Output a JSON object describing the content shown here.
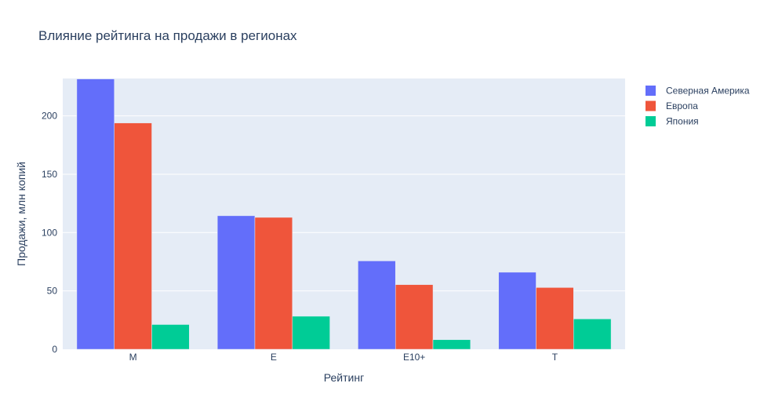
{
  "chart_data": {
    "type": "bar",
    "title": "Влияние рейтинга на продажи в регионах",
    "xlabel": "Рейтинг",
    "ylabel": "Продажи, млн копий",
    "categories": [
      "M",
      "E",
      "E10+",
      "T"
    ],
    "ylim": [
      0,
      232
    ],
    "yticks": [
      0,
      50,
      100,
      150,
      200
    ],
    "grid": true,
    "legend_position": "right",
    "series": [
      {
        "name": "Северная Америка",
        "color": "#636efa",
        "values": [
          231.6,
          114.4,
          75.7,
          66.0
        ]
      },
      {
        "name": "Европа",
        "color": "#ef553b",
        "values": [
          193.9,
          113.0,
          55.4,
          52.9
        ]
      },
      {
        "name": "Япония",
        "color": "#00cc96",
        "values": [
          21.2,
          28.3,
          8.2,
          26.0
        ]
      }
    ]
  }
}
